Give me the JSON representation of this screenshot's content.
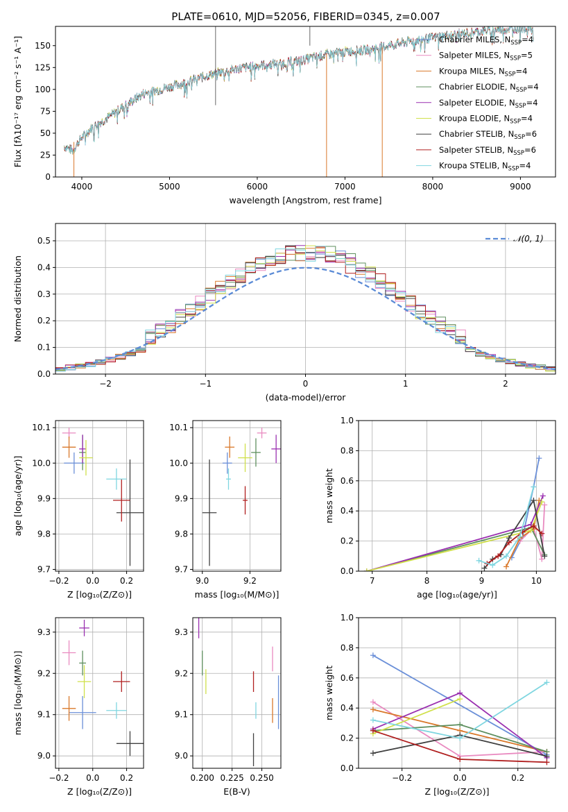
{
  "title": "PLATE=0610, MJD=52056, FIBERID=0345, z=0.007",
  "colors": {
    "chabrier_miles": "#6a8fd8",
    "salpeter_miles": "#e98ac0",
    "kroupa_miles": "#d9782a",
    "chabrier_elodie": "#5e8f5e",
    "salpeter_elodie": "#9a2fb0",
    "kroupa_elodie": "#d0e04a",
    "chabrier_stelib": "#404040",
    "salpeter_stelib": "#b01e1e",
    "kroupa_stelib": "#7fd6e0",
    "normal_curve": "#5b8bd6",
    "grid": "#b0b0b0"
  },
  "chart_data": [
    {
      "id": "spectrum",
      "type": "line",
      "xlabel": "wavelength [Angstrom, rest frame]",
      "ylabel": "Flux [fλ10⁻¹⁷ erg cm⁻² s⁻¹ A⁻¹]",
      "xlim": [
        3700,
        9400
      ],
      "ylim": [
        0,
        172
      ],
      "xticks": [
        4000,
        5000,
        6000,
        7000,
        8000,
        9000
      ],
      "yticks": [
        0,
        25,
        50,
        75,
        100,
        125,
        150
      ],
      "continuum": [
        [
          3800,
          35
        ],
        [
          3900,
          30
        ],
        [
          3950,
          38
        ],
        [
          4000,
          45
        ],
        [
          4100,
          55
        ],
        [
          4300,
          68
        ],
        [
          4500,
          82
        ],
        [
          4700,
          95
        ],
        [
          5000,
          103
        ],
        [
          5200,
          108
        ],
        [
          5300,
          112
        ],
        [
          5500,
          118
        ],
        [
          5800,
          124
        ],
        [
          6000,
          127
        ],
        [
          6300,
          130
        ],
        [
          6500,
          133
        ],
        [
          6700,
          138
        ],
        [
          7000,
          143
        ],
        [
          7300,
          146
        ],
        [
          7500,
          150
        ],
        [
          7800,
          156
        ],
        [
          8200,
          162
        ],
        [
          8600,
          167
        ],
        [
          9000,
          170
        ],
        [
          9150,
          171
        ]
      ],
      "legend": [
        {
          "name": "Chabrier MILES, N",
          "sub": "SSP",
          "post": "=4",
          "color": "chabrier_miles"
        },
        {
          "name": "Salpeter MILES, N",
          "sub": "SSP",
          "post": "=5",
          "color": "salpeter_miles"
        },
        {
          "name": "Kroupa MILES, N",
          "sub": "SSP",
          "post": "=4",
          "color": "kroupa_miles"
        },
        {
          "name": "Chabrier ELODIE, N",
          "sub": "SSP",
          "post": "=4",
          "color": "chabrier_elodie"
        },
        {
          "name": "Salpeter ELODIE, N",
          "sub": "SSP",
          "post": "=4",
          "color": "salpeter_elodie"
        },
        {
          "name": "Kroupa ELODIE, N",
          "sub": "SSP",
          "post": "=4",
          "color": "kroupa_elodie"
        },
        {
          "name": "Chabrier STELIB, N",
          "sub": "SSP",
          "post": "=6",
          "color": "chabrier_stelib"
        },
        {
          "name": "Salpeter STELIB, N",
          "sub": "SSP",
          "post": "=6",
          "color": "salpeter_stelib"
        },
        {
          "name": "Kroupa STELIB, N",
          "sub": "SSP",
          "post": "=4",
          "color": "kroupa_stelib"
        }
      ]
    },
    {
      "id": "residuals",
      "type": "line",
      "xlabel": "(data-model)/error",
      "ylabel": "Normed distribution",
      "xlim": [
        -2.5,
        2.5
      ],
      "ylim": [
        0,
        0.565
      ],
      "xticks": [
        -2,
        -1,
        0,
        1,
        2
      ],
      "yticks": [
        0.0,
        0.1,
        0.2,
        0.3,
        0.4,
        0.5
      ],
      "legend_label": "𝒩(0, 1)",
      "legend_position": "top-right",
      "bin_width": 0.1
    },
    {
      "id": "age_vs_Z",
      "type": "scatter",
      "xlabel": "Z [log₁₀(Z/Z⊙)]",
      "ylabel": "age  [log₁₀(age/yr)]",
      "xlim": [
        -0.22,
        0.3
      ],
      "ylim": [
        9.695,
        10.12
      ],
      "xticks": [
        -0.2,
        0.0,
        0.2
      ],
      "yticks": [
        9.7,
        9.8,
        9.9,
        10.0,
        10.1
      ],
      "points": [
        {
          "s": "chabrier_miles",
          "x": -0.11,
          "y": 10.0,
          "xe": 0.06,
          "ye": 0.03
        },
        {
          "s": "salpeter_miles",
          "x": -0.14,
          "y": 10.085,
          "xe": 0.04,
          "ye": 0.015
        },
        {
          "s": "kroupa_miles",
          "x": -0.14,
          "y": 10.045,
          "xe": 0.04,
          "ye": 0.03
        },
        {
          "s": "chabrier_elodie",
          "x": -0.06,
          "y": 10.03,
          "xe": 0.02,
          "ye": 0.05
        },
        {
          "s": "salpeter_elodie",
          "x": -0.06,
          "y": 10.04,
          "xe": 0.02,
          "ye": 0.04
        },
        {
          "s": "kroupa_elodie",
          "x": -0.04,
          "y": 10.015,
          "xe": 0.04,
          "ye": 0.05
        },
        {
          "s": "chabrier_stelib",
          "x": 0.22,
          "y": 9.86,
          "xe": 0.08,
          "ye": 0.15
        },
        {
          "s": "salpeter_stelib",
          "x": 0.17,
          "y": 9.895,
          "xe": 0.05,
          "ye": 0.06
        },
        {
          "s": "kroupa_stelib",
          "x": 0.14,
          "y": 9.955,
          "xe": 0.06,
          "ye": 0.03
        }
      ]
    },
    {
      "id": "age_vs_mass",
      "type": "scatter",
      "xlabel": "mass [log₁₀(M/M⊙)]",
      "ylabel": "",
      "xlim": [
        8.96,
        9.33
      ],
      "ylim": [
        9.695,
        10.12
      ],
      "xticks": [
        9.0,
        9.2
      ],
      "yticks": [
        9.7,
        9.8,
        9.9,
        10.0,
        10.1
      ],
      "points": [
        {
          "s": "chabrier_miles",
          "x": 9.105,
          "y": 10.0,
          "xe": 0.02,
          "ye": 0.03
        },
        {
          "s": "salpeter_miles",
          "x": 9.25,
          "y": 10.085,
          "xe": 0.02,
          "ye": 0.015
        },
        {
          "s": "kroupa_miles",
          "x": 9.115,
          "y": 10.045,
          "xe": 0.02,
          "ye": 0.03
        },
        {
          "s": "chabrier_elodie",
          "x": 9.225,
          "y": 10.03,
          "xe": 0.02,
          "ye": 0.04
        },
        {
          "s": "salpeter_elodie",
          "x": 9.31,
          "y": 10.04,
          "xe": 0.02,
          "ye": 0.04
        },
        {
          "s": "kroupa_elodie",
          "x": 9.18,
          "y": 10.015,
          "xe": 0.03,
          "ye": 0.04
        },
        {
          "s": "chabrier_stelib",
          "x": 9.03,
          "y": 9.86,
          "xe": 0.03,
          "ye": 0.15
        },
        {
          "s": "salpeter_stelib",
          "x": 9.18,
          "y": 9.895,
          "xe": 0.01,
          "ye": 0.04
        },
        {
          "s": "kroupa_stelib",
          "x": 9.11,
          "y": 9.955,
          "xe": 0.01,
          "ye": 0.03
        }
      ]
    },
    {
      "id": "massweight_vs_age",
      "type": "line",
      "xlabel": "age  [log₁₀(age/yr)]",
      "ylabel": "mass weight",
      "xlim": [
        6.75,
        10.35
      ],
      "ylim": [
        0,
        1
      ],
      "xticks": [
        7,
        8,
        9,
        10
      ],
      "yticks": [
        0.0,
        0.2,
        0.4,
        0.6,
        0.8,
        1.0
      ],
      "series": [
        {
          "s": "chabrier_miles",
          "x": [
            9.55,
            9.75,
            9.95,
            10.05
          ],
          "y": [
            0.09,
            0.23,
            0.56,
            0.75
          ]
        },
        {
          "s": "salpeter_miles",
          "x": [
            9.7,
            9.95,
            10.1,
            10.15
          ],
          "y": [
            0.2,
            0.29,
            0.08,
            0.44
          ]
        },
        {
          "s": "kroupa_miles",
          "x": [
            9.45,
            9.7,
            9.95,
            10.05
          ],
          "y": [
            0.03,
            0.22,
            0.28,
            0.47
          ]
        },
        {
          "s": "chabrier_elodie",
          "x": [
            6.9,
            9.9,
            10.15
          ],
          "y": [
            0.0,
            0.29,
            0.11
          ]
        },
        {
          "s": "salpeter_elodie",
          "x": [
            6.9,
            9.9,
            10.12
          ],
          "y": [
            0.0,
            0.31,
            0.5
          ]
        },
        {
          "s": "kroupa_elodie",
          "x": [
            6.9,
            9.9,
            10.1
          ],
          "y": [
            0.0,
            0.27,
            0.46
          ]
        },
        {
          "s": "chabrier_stelib",
          "x": [
            9.05,
            9.2,
            9.35,
            9.5,
            9.95,
            10.15
          ],
          "y": [
            0.02,
            0.08,
            0.11,
            0.22,
            0.47,
            0.1
          ]
        },
        {
          "s": "salpeter_stelib",
          "x": [
            9.1,
            9.3,
            9.5,
            9.75,
            9.95,
            10.1
          ],
          "y": [
            0.05,
            0.1,
            0.19,
            0.26,
            0.3,
            0.25
          ]
        },
        {
          "s": "kroupa_stelib",
          "x": [
            8.95,
            9.2,
            9.45,
            9.7,
            9.95
          ],
          "y": [
            0.07,
            0.04,
            0.1,
            0.23,
            0.56
          ]
        }
      ]
    },
    {
      "id": "mass_vs_Z",
      "type": "scatter",
      "xlabel": "Z [log₁₀(Z/Z⊙)]",
      "ylabel": "mass [log₁₀(M/M⊙)]",
      "xlim": [
        -0.22,
        0.3
      ],
      "ylim": [
        8.97,
        9.335
      ],
      "xticks": [
        -0.2,
        0.0,
        0.2
      ],
      "yticks": [
        9.0,
        9.1,
        9.2,
        9.3
      ],
      "points": [
        {
          "s": "chabrier_miles",
          "x": -0.06,
          "y": 9.105,
          "xe": 0.08,
          "ye": 0.04
        },
        {
          "s": "salpeter_miles",
          "x": -0.14,
          "y": 9.25,
          "xe": 0.04,
          "ye": 0.03
        },
        {
          "s": "kroupa_miles",
          "x": -0.14,
          "y": 9.115,
          "xe": 0.04,
          "ye": 0.03
        },
        {
          "s": "chabrier_elodie",
          "x": -0.06,
          "y": 9.225,
          "xe": 0.02,
          "ye": 0.03
        },
        {
          "s": "salpeter_elodie",
          "x": -0.05,
          "y": 9.31,
          "xe": 0.03,
          "ye": 0.02
        },
        {
          "s": "kroupa_elodie",
          "x": -0.05,
          "y": 9.18,
          "xe": 0.04,
          "ye": 0.04
        },
        {
          "s": "chabrier_stelib",
          "x": 0.22,
          "y": 9.03,
          "xe": 0.08,
          "ye": 0.03
        },
        {
          "s": "salpeter_stelib",
          "x": 0.17,
          "y": 9.18,
          "xe": 0.05,
          "ye": 0.025
        },
        {
          "s": "kroupa_stelib",
          "x": 0.14,
          "y": 9.11,
          "xe": 0.06,
          "ye": 0.02
        }
      ]
    },
    {
      "id": "mass_vs_ebv",
      "type": "scatter",
      "xlabel": "E(B-V)",
      "ylabel": "",
      "xlim": [
        0.192,
        0.266
      ],
      "ylim": [
        8.97,
        9.335
      ],
      "xticks": [
        0.2,
        0.225,
        0.25
      ],
      "yticks": [
        9.0,
        9.1,
        9.2,
        9.3
      ],
      "points": [
        {
          "s": "chabrier_miles",
          "x": 0.264,
          "y": 9.13,
          "xe": 0,
          "ye": 0.065
        },
        {
          "s": "salpeter_miles",
          "x": 0.259,
          "y": 9.235,
          "xe": 0,
          "ye": 0.03
        },
        {
          "s": "kroupa_miles",
          "x": 0.259,
          "y": 9.11,
          "xe": 0,
          "ye": 0.03
        },
        {
          "s": "chabrier_elodie",
          "x": 0.2,
          "y": 9.225,
          "xe": 0,
          "ye": 0.03
        },
        {
          "s": "salpeter_elodie",
          "x": 0.197,
          "y": 9.31,
          "xe": 0,
          "ye": 0.025
        },
        {
          "s": "kroupa_elodie",
          "x": 0.203,
          "y": 9.18,
          "xe": 0,
          "ye": 0.03
        },
        {
          "s": "chabrier_stelib",
          "x": 0.243,
          "y": 9.015,
          "xe": 0,
          "ye": 0.04
        },
        {
          "s": "salpeter_stelib",
          "x": 0.243,
          "y": 9.18,
          "xe": 0,
          "ye": 0.025
        },
        {
          "s": "kroupa_stelib",
          "x": 0.245,
          "y": 9.11,
          "xe": 0,
          "ye": 0.02
        }
      ]
    },
    {
      "id": "massweight_vs_Z",
      "type": "line",
      "xlabel": "Z [log₁₀(Z/Z⊙)]",
      "ylabel": "mass weight",
      "xlim": [
        -0.35,
        0.33
      ],
      "ylim": [
        0,
        1
      ],
      "xticks": [
        -0.2,
        0.0,
        0.2
      ],
      "yticks": [
        0.0,
        0.2,
        0.4,
        0.6,
        0.8,
        1.0
      ],
      "series": [
        {
          "s": "chabrier_miles",
          "x": [
            -0.3,
            0.3
          ],
          "y": [
            0.75,
            0.09
          ]
        },
        {
          "s": "salpeter_miles",
          "x": [
            -0.3,
            0.0,
            0.3
          ],
          "y": [
            0.44,
            0.08,
            0.11
          ]
        },
        {
          "s": "kroupa_miles",
          "x": [
            -0.3,
            0.0,
            0.3
          ],
          "y": [
            0.39,
            0.25,
            0.11
          ]
        },
        {
          "s": "chabrier_elodie",
          "x": [
            -0.3,
            0.0,
            0.3
          ],
          "y": [
            0.25,
            0.29,
            0.11
          ]
        },
        {
          "s": "salpeter_elodie",
          "x": [
            -0.3,
            0.0,
            0.3
          ],
          "y": [
            0.26,
            0.5,
            0.07
          ]
        },
        {
          "s": "kroupa_elodie",
          "x": [
            -0.3,
            0.0
          ],
          "y": [
            0.23,
            0.46
          ]
        },
        {
          "s": "chabrier_stelib",
          "x": [
            -0.3,
            0.0,
            0.3
          ],
          "y": [
            0.1,
            0.22,
            0.08
          ]
        },
        {
          "s": "salpeter_stelib",
          "x": [
            -0.3,
            0.0,
            0.3
          ],
          "y": [
            0.25,
            0.06,
            0.04
          ]
        },
        {
          "s": "kroupa_stelib",
          "x": [
            -0.3,
            0.0,
            0.3
          ],
          "y": [
            0.32,
            0.2,
            0.57
          ]
        }
      ]
    }
  ]
}
